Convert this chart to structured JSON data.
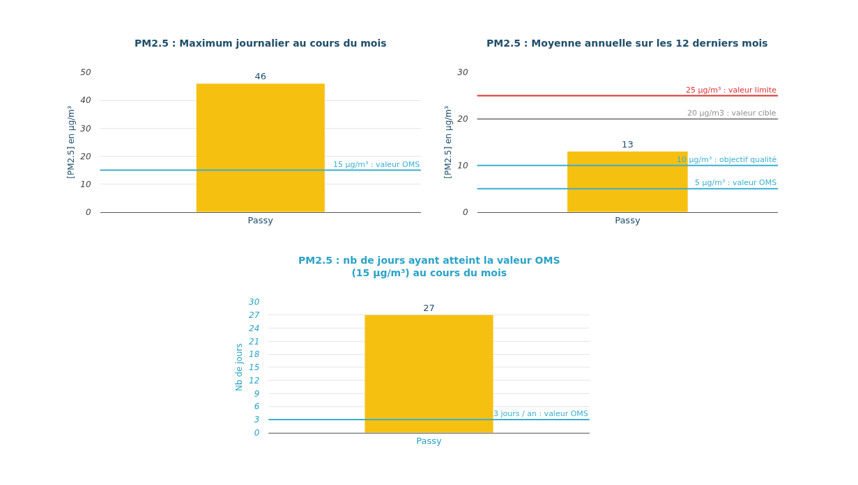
{
  "chart_data": [
    {
      "type": "bar",
      "title": "PM2.5 : Maximum journalier au cours du mois",
      "ylabel": "[PM2.5] en µg/m³",
      "categories": [
        "Passy"
      ],
      "values": [
        46
      ],
      "color": "#f5c010",
      "ylim": [
        0,
        50
      ],
      "yticks": [
        0,
        10,
        20,
        30,
        40,
        50
      ],
      "grid": "y",
      "data_labels": true,
      "ref_lines": [
        {
          "axis": "y",
          "value": 15,
          "label": "15 µg/m³ : valeur OMS",
          "color": "#3aafd0"
        }
      ]
    },
    {
      "type": "bar",
      "title": "PM2.5 : Moyenne annuelle sur les 12 derniers mois",
      "ylabel": "[PM2.5] en µg/m³",
      "categories": [
        "Passy"
      ],
      "values": [
        13
      ],
      "color": "#f5c010",
      "ylim": [
        0,
        30
      ],
      "yticks": [
        0,
        10,
        20,
        30
      ],
      "grid": "y",
      "data_labels": true,
      "ref_lines": [
        {
          "axis": "y",
          "value": 25,
          "label": "25 µg/m³ : valeur limite",
          "color": "#e03030"
        },
        {
          "axis": "y",
          "value": 20,
          "label": "20 µg/m3 : valeur cible",
          "color": "#909090"
        },
        {
          "axis": "y",
          "value": 10,
          "label": "10 µg/m³ : objectif qualité",
          "color": "#3aafd0"
        },
        {
          "axis": "y",
          "value": 5,
          "label": "5 µg/m³ : valeur OMS",
          "color": "#3aafd0"
        }
      ]
    },
    {
      "type": "bar",
      "title": "PM2.5 : nb de jours ayant atteint la valeur OMS\n(15 µg/m³) au cours du mois",
      "ylabel": "Nb de jours",
      "categories": [
        "Passy"
      ],
      "values": [
        27
      ],
      "color": "#f5c010",
      "ylim": [
        0,
        30
      ],
      "yticks": [
        0,
        3,
        6,
        9,
        12,
        15,
        18,
        21,
        24,
        27,
        30
      ],
      "grid": "y",
      "data_labels": true,
      "ref_lines": [
        {
          "axis": "y",
          "value": 3,
          "label": "3 jours / an : valeur OMS",
          "color": "#3aafd0"
        }
      ]
    }
  ]
}
